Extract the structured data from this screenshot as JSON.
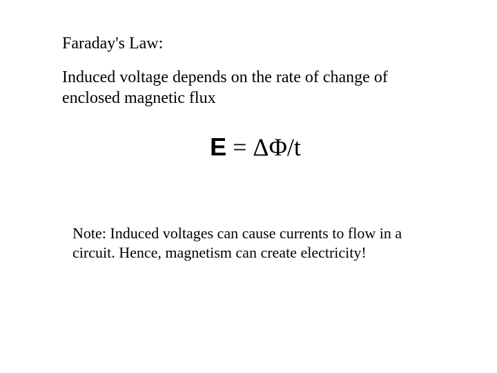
{
  "title": "Faraday's Law:",
  "description": "Induced voltage depends on the rate of change of enclosed magnetic flux",
  "formula": {
    "e_symbol": "E",
    "rest": " = ΔΦ/t"
  },
  "note": "Note: Induced voltages can cause currents to flow in a circuit. Hence, magnetism can create electricity!",
  "styling": {
    "background_color": "#ffffff",
    "text_color": "#000000",
    "title_fontsize": 24,
    "description_fontsize": 24,
    "formula_fontsize": 36,
    "note_fontsize": 22,
    "font_family": "Times New Roman",
    "formula_e_font": "Arial"
  }
}
